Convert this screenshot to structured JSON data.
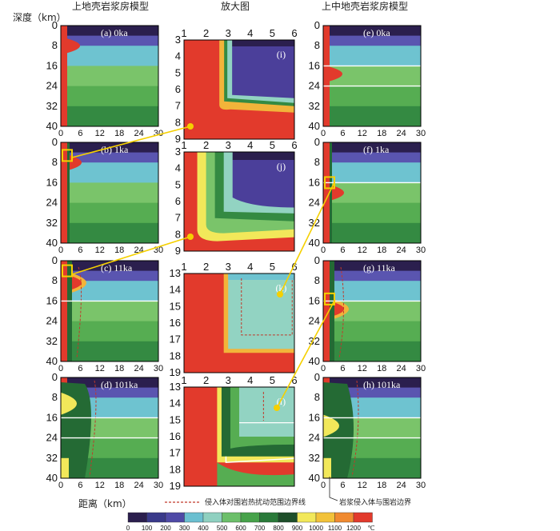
{
  "headers": {
    "left": "上地壳岩浆房模型",
    "middle": "放大图",
    "right": "上中地壳岩浆房模型"
  },
  "axis": {
    "depth_label": "深度（km）",
    "distance_label": "距离（km）",
    "depth_ticks": [
      "0",
      "8",
      "16",
      "24",
      "32",
      "40"
    ],
    "distance_ticks": [
      "0",
      "6",
      "12",
      "18",
      "24",
      "30"
    ],
    "zoom_x_ticks": [
      "1",
      "2",
      "3",
      "4",
      "5",
      "6"
    ],
    "zoom_y_ticks_upper": [
      "3",
      "4",
      "5",
      "6",
      "7",
      "8",
      "9"
    ],
    "zoom_y_ticks_lower": [
      "13",
      "14",
      "15",
      "16",
      "17",
      "18",
      "19"
    ]
  },
  "panels": {
    "a": "(a) 0ka",
    "b": "(b) 1ka",
    "c": "(c) 11ka",
    "d": "(d) 101ka",
    "e": "(e) 0ka",
    "f": "(f) 1ka",
    "g": "(g) 11ka",
    "h": "(h) 101ka",
    "i": "(i)",
    "j": "(j)",
    "k": "(k)",
    "l": "(l)"
  },
  "annotations": {
    "disturbance_line": "侵入体对围岩热扰动范围边界线",
    "intrusion_boundary": "岩浆侵入体与围岩边界"
  },
  "legend": {
    "unit": "℃",
    "labels": [
      "0",
      "100",
      "200",
      "300",
      "400",
      "500",
      "600",
      "700",
      "800",
      "900",
      "1000",
      "1100",
      "1200"
    ],
    "colors": [
      "#2b1f4e",
      "#3a3a8a",
      "#4f4aa6",
      "#6bbfd0",
      "#8fd0c0",
      "#6cbf6a",
      "#47a24a",
      "#2a7a3a",
      "#1e4f2a",
      "#f2e85a",
      "#f2c23a",
      "#f08a30",
      "#e23a2c"
    ]
  }
}
